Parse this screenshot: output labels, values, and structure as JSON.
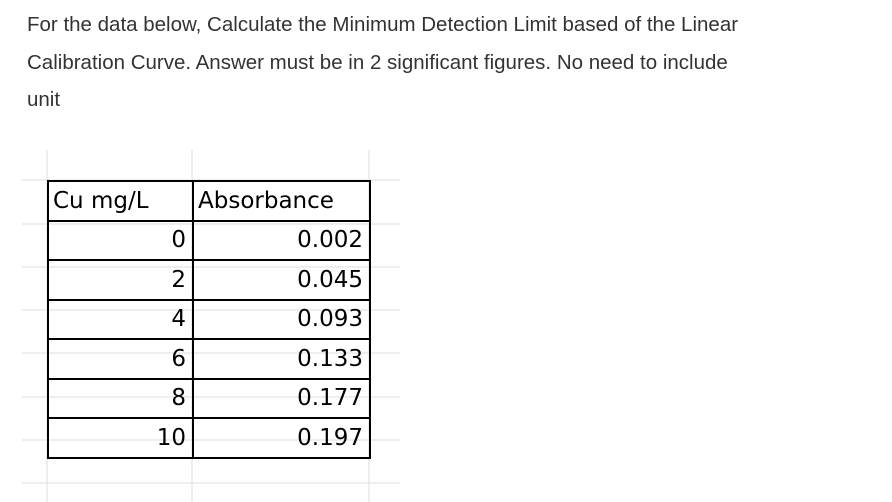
{
  "question": {
    "lines": [
      "For the data below, Calculate the Minimum Detection Limit based of the Linear",
      "Calibration Curve. Answer must be in 2 significant figures. No need to include",
      "unit"
    ]
  },
  "table": {
    "header": [
      "Cu mg/L",
      "Absorbance"
    ],
    "rows": [
      [
        "0",
        "0.002"
      ],
      [
        "2",
        "0.045"
      ],
      [
        "4",
        "0.093"
      ],
      [
        "6",
        "0.133"
      ],
      [
        "8",
        "0.177"
      ],
      [
        "10",
        "0.197"
      ]
    ]
  }
}
